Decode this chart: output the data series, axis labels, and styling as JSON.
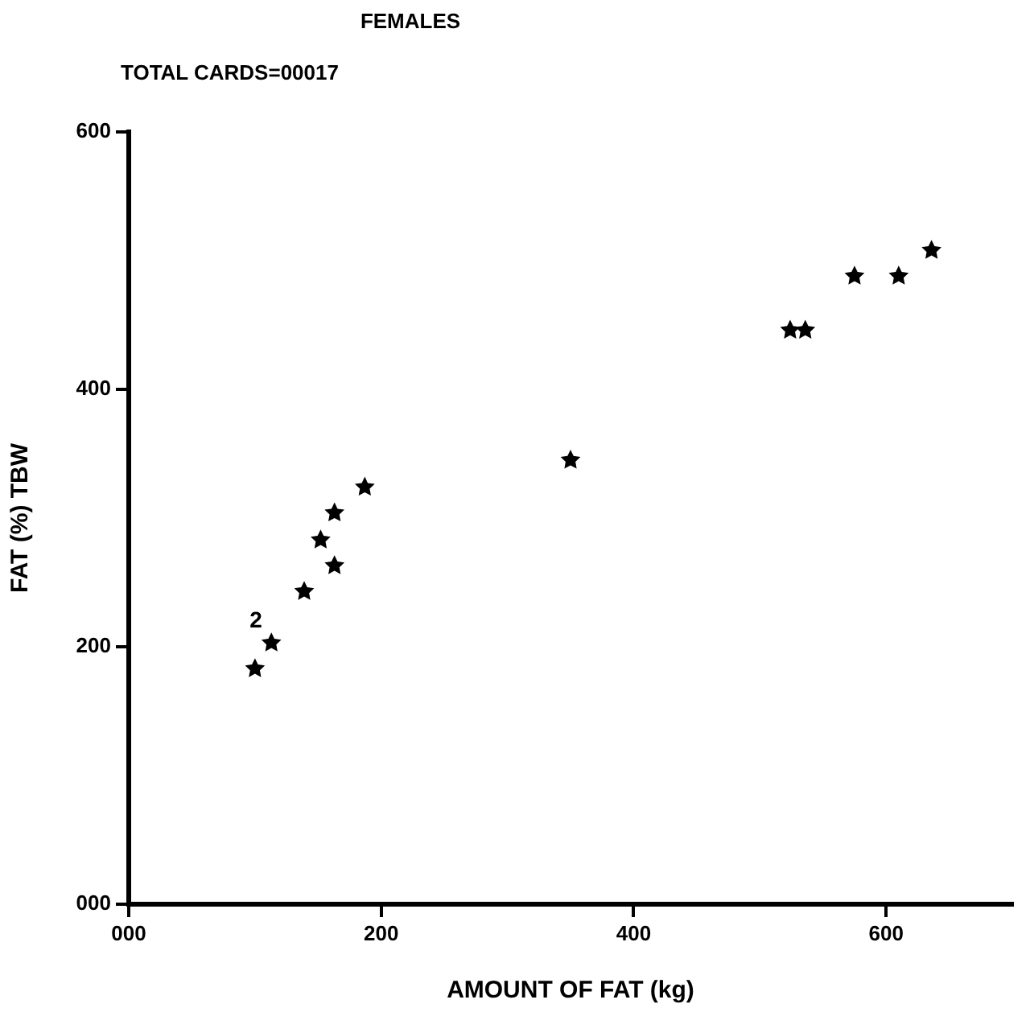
{
  "chart_data": {
    "type": "scatter",
    "title": "FEMALES",
    "subtitle": "TOTAL CARDS=00017",
    "xlabel": "AMOUNT OF FAT (kg)",
    "ylabel": "FAT (%) TBW",
    "x": [
      100,
      113,
      139,
      163,
      152,
      163,
      187,
      350,
      524,
      536,
      575,
      610,
      636
    ],
    "series": [
      {
        "color": "#000000",
        "values": [
          183,
          203,
          243,
          263,
          283,
          304,
          324,
          345,
          446,
          446,
          488,
          488,
          508
        ]
      }
    ],
    "annotations": [
      "2"
    ],
    "xlim": [
      0,
      700
    ],
    "xticks": [
      {
        "value": 0,
        "label": "000"
      },
      200,
      400,
      600
    ],
    "ylim": [
      0,
      600
    ],
    "yticks": [
      {
        "value": 0,
        "label": "000"
      },
      200,
      400,
      600
    ],
    "grid": false,
    "legend": false,
    "marker": "star"
  }
}
